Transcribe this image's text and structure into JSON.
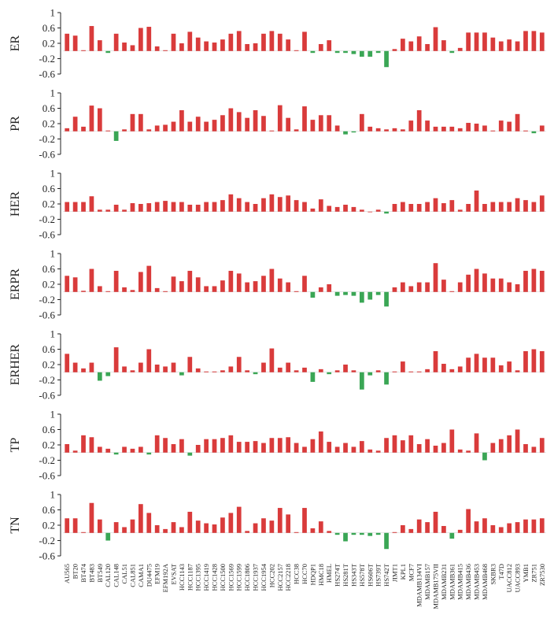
{
  "chart_data": {
    "type": "bar",
    "categories": [
      "AU565",
      "BT20",
      "BT474",
      "BT483",
      "BT549",
      "CAL120",
      "CAL148",
      "CAL51",
      "CAL851",
      "CAMA1",
      "DU4475",
      "EFM19",
      "EFM192A",
      "EVSAT",
      "HCC1143",
      "HCC1187",
      "HCC1395",
      "HCC1419",
      "HCC1428",
      "HCC1500",
      "HCC1569",
      "HCC1599",
      "HCC1806",
      "HCC1937",
      "HCC1954",
      "HCC202",
      "HCC2157",
      "HCC2218",
      "HCC38",
      "HCC70",
      "HDQP1",
      "HMC18",
      "HMEL",
      "HS274T",
      "HS281T",
      "HS343T",
      "HS578T",
      "HS606T",
      "HS739T",
      "HS742T",
      "JIMT1",
      "KPL1",
      "MCF7",
      "MDAMB134VI",
      "MDAMB157",
      "MDAMB175VII",
      "MDAMB231",
      "MDAMB361",
      "MDAMB415",
      "MDAMB436",
      "MDAMB453",
      "MDAMB468",
      "SKBR3",
      "T47D",
      "UACC812",
      "UACC893",
      "YMB1",
      "ZR751",
      "ZR7530"
    ],
    "positive_color": "#d93b3b",
    "negative_color": "#3aa655",
    "y_ticks": [
      "1",
      "0.6",
      "0.2",
      "-0.2",
      "-0.6"
    ],
    "ylim": [
      -0.6,
      1
    ],
    "series": [
      {
        "name": "ER",
        "values": [
          0.45,
          0.4,
          0.02,
          0.65,
          0.28,
          -0.05,
          0.45,
          0.22,
          0.15,
          0.6,
          0.63,
          0.12,
          0.02,
          0.45,
          0.2,
          0.5,
          0.35,
          0.25,
          0.22,
          0.3,
          0.45,
          0.52,
          0.18,
          0.2,
          0.45,
          0.52,
          0.45,
          0.3,
          0.02,
          0.5,
          -0.05,
          0.18,
          0.28,
          -0.05,
          -0.05,
          -0.08,
          -0.15,
          -0.15,
          -0.05,
          -0.42,
          0.05,
          0.32,
          0.25,
          0.38,
          0.18,
          0.62,
          0.28,
          -0.05,
          0.08,
          0.48,
          0.48,
          0.48,
          0.35,
          0.25,
          0.3,
          0.25,
          0.52,
          0.52,
          0.48
        ]
      },
      {
        "name": "PR",
        "values": [
          0.08,
          0.38,
          0.12,
          0.67,
          0.6,
          0.02,
          -0.25,
          0.05,
          0.45,
          0.45,
          0.05,
          0.15,
          0.17,
          0.25,
          0.55,
          0.25,
          0.38,
          0.25,
          0.3,
          0.42,
          0.6,
          0.5,
          0.35,
          0.55,
          0.4,
          0.02,
          0.68,
          0.35,
          0.05,
          0.65,
          0.3,
          0.42,
          0.42,
          0.15,
          -0.08,
          -0.03,
          0.45,
          0.12,
          0.08,
          0.05,
          0.08,
          0.05,
          0.28,
          0.55,
          0.28,
          0.12,
          0.12,
          0.12,
          0.08,
          0.22,
          0.2,
          0.15,
          0.02,
          0.28,
          0.25,
          0.45,
          0.02,
          -0.05,
          0.15
        ]
      },
      {
        "name": "HER",
        "values": [
          0.25,
          0.25,
          0.25,
          0.4,
          0.05,
          0.05,
          0.18,
          0.05,
          0.22,
          0.2,
          0.22,
          0.25,
          0.28,
          0.25,
          0.25,
          0.18,
          0.18,
          0.25,
          0.25,
          0.3,
          0.45,
          0.35,
          0.25,
          0.2,
          0.35,
          0.45,
          0.38,
          0.42,
          0.3,
          0.25,
          0.08,
          0.32,
          0.15,
          0.12,
          0.18,
          0.12,
          0.05,
          0.0,
          0.05,
          -0.05,
          0.2,
          0.25,
          0.2,
          0.2,
          0.25,
          0.35,
          0.22,
          0.3,
          0.05,
          0.2,
          0.55,
          0.2,
          0.25,
          0.25,
          0.25,
          0.35,
          0.3,
          0.25,
          0.42
        ]
      },
      {
        "name": "ERPR",
        "values": [
          0.42,
          0.38,
          0.03,
          0.6,
          0.15,
          0.02,
          0.55,
          0.12,
          0.05,
          0.52,
          0.68,
          0.1,
          0.02,
          0.4,
          0.28,
          0.55,
          0.38,
          0.15,
          0.15,
          0.3,
          0.55,
          0.48,
          0.25,
          0.28,
          0.42,
          0.6,
          0.35,
          0.25,
          0.02,
          0.42,
          -0.15,
          0.12,
          0.2,
          -0.1,
          -0.08,
          -0.1,
          -0.28,
          -0.2,
          -0.08,
          -0.38,
          0.12,
          0.25,
          0.15,
          0.25,
          0.25,
          0.75,
          0.32,
          0.02,
          0.25,
          0.45,
          0.6,
          0.48,
          0.35,
          0.35,
          0.25,
          0.2,
          0.55,
          0.6,
          0.55
        ]
      },
      {
        "name": "ERHER",
        "values": [
          0.48,
          0.25,
          0.1,
          0.25,
          -0.22,
          -0.1,
          0.65,
          0.15,
          0.05,
          0.25,
          0.6,
          0.2,
          0.15,
          0.25,
          -0.08,
          0.4,
          0.1,
          0.02,
          0.02,
          0.05,
          0.15,
          0.4,
          0.05,
          -0.05,
          0.25,
          0.62,
          0.12,
          0.25,
          0.05,
          0.12,
          -0.25,
          0.08,
          -0.05,
          0.05,
          0.2,
          0.05,
          -0.45,
          -0.08,
          0.05,
          -0.32,
          0.02,
          0.28,
          0.02,
          0.02,
          0.08,
          0.55,
          0.22,
          0.08,
          0.15,
          0.38,
          0.48,
          0.38,
          0.38,
          0.18,
          0.28,
          0.05,
          0.55,
          0.6,
          0.55
        ]
      },
      {
        "name": "TP",
        "values": [
          0.22,
          0.05,
          0.45,
          0.4,
          0.15,
          0.1,
          -0.05,
          0.15,
          0.1,
          0.15,
          -0.05,
          0.45,
          0.38,
          0.22,
          0.35,
          -0.08,
          0.2,
          0.35,
          0.35,
          0.38,
          0.45,
          0.28,
          0.28,
          0.3,
          0.25,
          0.38,
          0.38,
          0.4,
          0.25,
          0.15,
          0.35,
          0.55,
          0.28,
          0.15,
          0.25,
          0.15,
          0.3,
          0.08,
          0.05,
          0.38,
          0.45,
          0.32,
          0.45,
          0.22,
          0.35,
          0.18,
          0.25,
          0.6,
          0.08,
          0.05,
          0.5,
          -0.2,
          0.25,
          0.35,
          0.45,
          0.6,
          0.22,
          0.15,
          0.38
        ]
      },
      {
        "name": "TN",
        "values": [
          0.38,
          0.38,
          0.02,
          0.78,
          0.35,
          -0.2,
          0.28,
          0.15,
          0.35,
          0.75,
          0.52,
          0.2,
          0.1,
          0.28,
          0.15,
          0.55,
          0.32,
          0.25,
          0.22,
          0.4,
          0.52,
          0.68,
          0.05,
          0.25,
          0.38,
          0.32,
          0.65,
          0.48,
          0.02,
          0.65,
          0.12,
          0.3,
          0.05,
          -0.05,
          -0.22,
          -0.05,
          -0.05,
          -0.08,
          -0.05,
          -0.42,
          0.02,
          0.2,
          0.1,
          0.35,
          0.28,
          0.55,
          0.18,
          -0.15,
          0.08,
          0.62,
          0.3,
          0.38,
          0.2,
          0.15,
          0.25,
          0.28,
          0.35,
          0.35,
          0.38
        ]
      }
    ]
  }
}
